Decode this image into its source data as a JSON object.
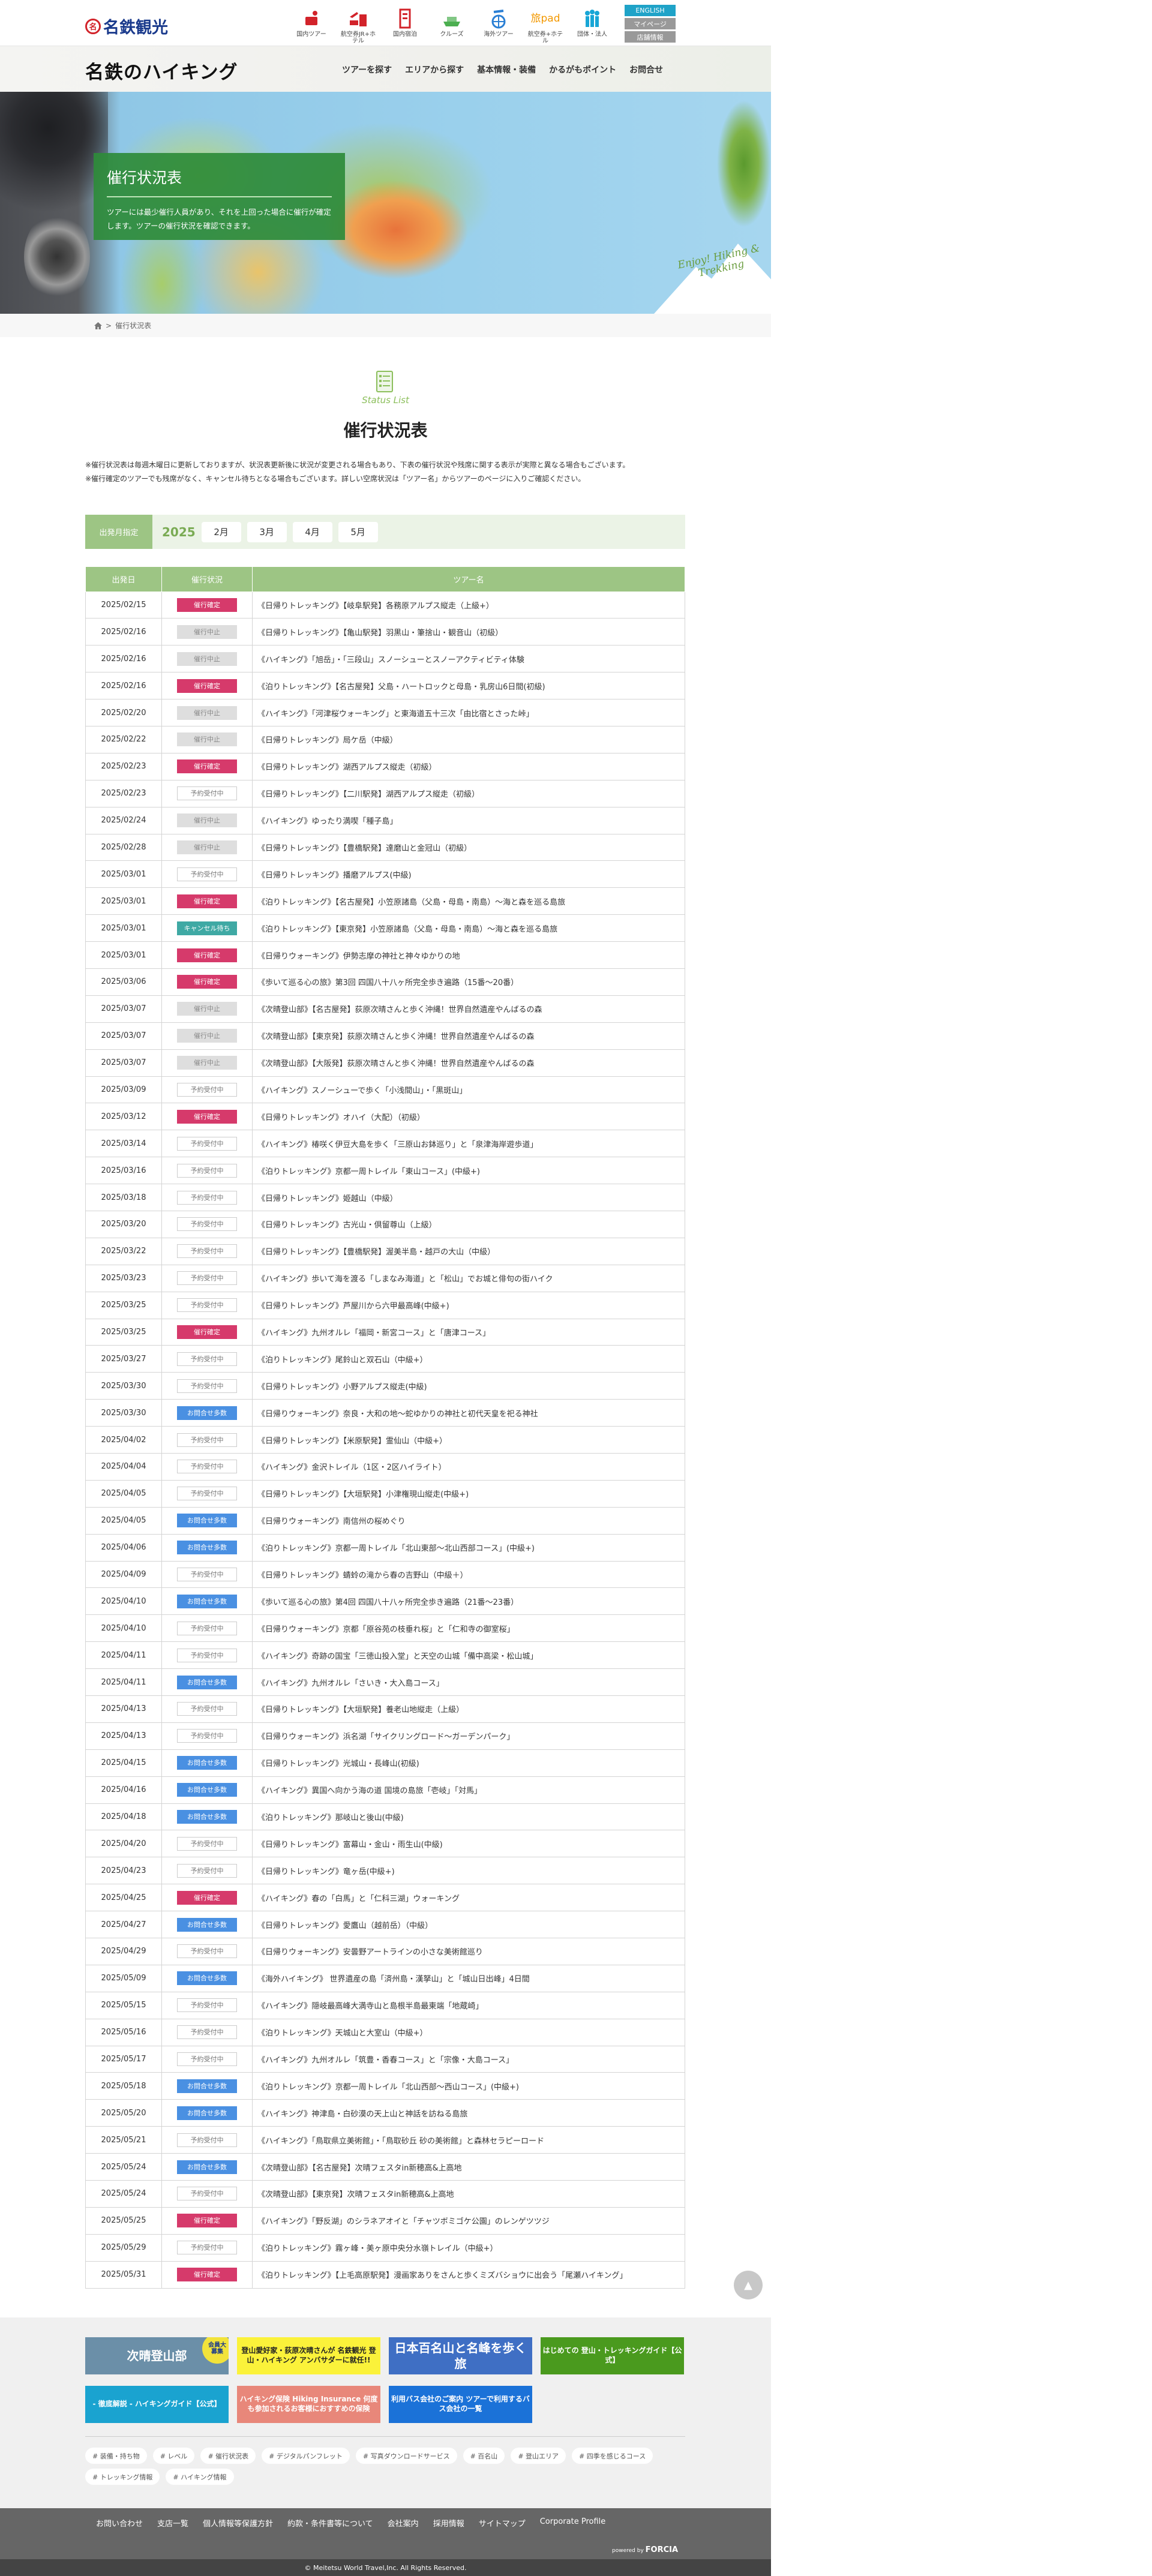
{
  "header": {
    "brand": "名鉄観光",
    "services": [
      {
        "label": "国内ツアー",
        "icon": "domestic-tour-icon",
        "color": "#d2232a"
      },
      {
        "label": "航空券JR+ホテル",
        "icon": "air-jr-hotel-icon",
        "color": "#d2232a"
      },
      {
        "label": "国内宿泊",
        "icon": "hotel-icon",
        "color": "#d2232a"
      },
      {
        "label": "クルーズ",
        "icon": "cruise-icon",
        "color": "#4caf50"
      },
      {
        "label": "海外ツアー",
        "icon": "overseas-tour-icon",
        "color": "#2a7fd4"
      },
      {
        "label": "航空券+ホテル",
        "icon": "tabipad-icon",
        "logo": "旅pad",
        "color": "#f39800"
      },
      {
        "label": "団体・法人",
        "icon": "group-icon",
        "color": "#18a6d6"
      }
    ],
    "buttons": [
      {
        "label": "ENGLISH",
        "color": "#1fa3c8"
      },
      {
        "label": "マイページ",
        "color": "#999999"
      },
      {
        "label": "店舗情報",
        "color": "#999999"
      }
    ]
  },
  "nav": {
    "logo": "名鉄のハイキング",
    "items": [
      "ツアーを探す",
      "エリアから探す",
      "基本情報・装備",
      "かるがもポイント",
      "お問合せ"
    ]
  },
  "hero": {
    "title": "催行状況表",
    "description": "ツアーには最少催行人員があり、それを上回った場合に催行が確定します。ツアーの催行状況を確認できます。",
    "tagline": "Enjoy! Hiking & Trekking"
  },
  "breadcrumb": {
    "home_icon": "home-icon",
    "current": "催行状況表"
  },
  "section": {
    "subtitle": "Status List",
    "title": "催行状況表",
    "notes": [
      "※催行状況表は毎週木曜日に更新しておりますが、状況表更新後に状況が変更される場合もあり、下表の催行状況や残席に関する表示が実際と異なる場合もございます。",
      "※催行確定のツアーでも残席がなく、キャンセル待ちとなる場合もございます。詳しい空席状況は「ツアー名」からツアーのページに入りご確認ください。"
    ]
  },
  "filter": {
    "label": "出発月指定",
    "year": "2025",
    "months": [
      "2月",
      "3月",
      "4月",
      "5月"
    ]
  },
  "table": {
    "headers": [
      "出発日",
      "催行状況",
      "ツアー名"
    ],
    "status_labels": {
      "confirmed": "催行確定",
      "cancelled": "催行中止",
      "accepting": "予約受付中",
      "waitlist": "キャンセル待ち",
      "inquiries": "お問合せ多数"
    },
    "status_colors": {
      "confirmed": "#d63a6b",
      "cancelled": "#dedede",
      "accepting": "#ffffff",
      "waitlist": "#3fa9a4",
      "inquiries": "#4a90e2"
    },
    "rows": [
      [
        "2025/02/15",
        "confirmed",
        "《日帰りトレッキング》【岐阜駅発】各務原アルプス縦走（上級+）"
      ],
      [
        "2025/02/16",
        "cancelled",
        "《日帰りトレッキング》【亀山駅発】羽黒山・筆捨山・観音山（初級）"
      ],
      [
        "2025/02/16",
        "cancelled",
        "《ハイキング》「旭岳」・「三段山」スノーシューとスノーアクティビティ体験"
      ],
      [
        "2025/02/16",
        "confirmed",
        "《泊りトレッキング》【名古屋発】父島・ハートロックと母島・乳房山6日間(初級)"
      ],
      [
        "2025/02/20",
        "cancelled",
        "《ハイキング》「河津桜ウォーキング」と東海道五十三次「由比宿とさった峠」"
      ],
      [
        "2025/02/22",
        "cancelled",
        "《日帰りトレッキング》局ケ岳（中級）"
      ],
      [
        "2025/02/23",
        "confirmed",
        "《日帰りトレッキング》湖西アルプス縦走（初級）"
      ],
      [
        "2025/02/23",
        "accepting",
        "《日帰りトレッキング》【二川駅発】湖西アルプス縦走（初級）"
      ],
      [
        "2025/02/24",
        "cancelled",
        "《ハイキング》ゆったり満喫「種子島」"
      ],
      [
        "2025/02/28",
        "cancelled",
        "《日帰りトレッキング》【豊橋駅発】達磨山と金冠山（初級）"
      ],
      [
        "2025/03/01",
        "accepting",
        "《日帰りトレッキング》播磨アルプス(中級)"
      ],
      [
        "2025/03/01",
        "confirmed",
        "《泊りトレッキング》【名古屋発】小笠原諸島（父島・母島・南島）～海と森を巡る島旅"
      ],
      [
        "2025/03/01",
        "waitlist",
        "《泊りトレッキング》【東京発】小笠原諸島（父島・母島・南島）～海と森を巡る島旅"
      ],
      [
        "2025/03/01",
        "confirmed",
        "《日帰りウォーキング》伊勢志摩の神社と神々ゆかりの地"
      ],
      [
        "2025/03/06",
        "confirmed",
        "《歩いて巡る心の旅》第3回 四国八十八ヶ所完全歩き遍路（15番～20番）"
      ],
      [
        "2025/03/07",
        "cancelled",
        "《次晴登山部》【名古屋発】荻原次晴さんと歩く沖縄！世界自然遺産やんばるの森"
      ],
      [
        "2025/03/07",
        "cancelled",
        "《次晴登山部》【東京発】荻原次晴さんと歩く沖縄！世界自然遺産やんばるの森"
      ],
      [
        "2025/03/07",
        "cancelled",
        "《次晴登山部》【大阪発】荻原次晴さんと歩く沖縄！世界自然遺産やんばるの森"
      ],
      [
        "2025/03/09",
        "accepting",
        "《ハイキング》スノーシューで歩く「小浅間山」・「黒斑山」"
      ],
      [
        "2025/03/12",
        "confirmed",
        "《日帰りトレッキング》オハイ（大配）（初級）"
      ],
      [
        "2025/03/14",
        "accepting",
        "《ハイキング》椿咲く伊豆大島を歩く「三原山お鉢巡り」と「泉津海岸遊歩道」"
      ],
      [
        "2025/03/16",
        "accepting",
        "《泊りトレッキング》京都一周トレイル「東山コース」(中級+)"
      ],
      [
        "2025/03/18",
        "accepting",
        "《日帰りトレッキング》姫越山（中級）"
      ],
      [
        "2025/03/20",
        "accepting",
        "《日帰りトレッキング》古光山・倶留尊山（上級）"
      ],
      [
        "2025/03/22",
        "accepting",
        "《日帰りトレッキング》【豊橋駅発】渥美半島・越戸の大山（中級）"
      ],
      [
        "2025/03/23",
        "accepting",
        "《ハイキング》歩いて海を渡る「しまなみ海道」と「松山」でお城と俳句の街ハイク"
      ],
      [
        "2025/03/25",
        "accepting",
        "《日帰りトレッキング》芦屋川から六甲最高峰(中級+)"
      ],
      [
        "2025/03/25",
        "confirmed",
        "《ハイキング》九州オルレ「福岡・新宮コース」と「唐津コース」"
      ],
      [
        "2025/03/27",
        "accepting",
        "《泊りトレッキング》尾鈴山と双石山（中級+）"
      ],
      [
        "2025/03/30",
        "accepting",
        "《日帰りトレッキング》小野アルプス縦走(中級)"
      ],
      [
        "2025/03/30",
        "inquiries",
        "《日帰りウォーキング》奈良・大和の地～蛇ゆかりの神社と初代天皇を祀る神社"
      ],
      [
        "2025/04/02",
        "accepting",
        "《日帰りトレッキング》【米原駅発】霊仙山（中級+）"
      ],
      [
        "2025/04/04",
        "accepting",
        "《ハイキング》金沢トレイル（1区・2区ハイライト）"
      ],
      [
        "2025/04/05",
        "accepting",
        "《日帰りトレッキング》【大垣駅発】小津権現山縦走(中級+)"
      ],
      [
        "2025/04/05",
        "inquiries",
        "《日帰りウォーキング》南信州の桜めぐり"
      ],
      [
        "2025/04/06",
        "inquiries",
        "《泊りトレッキング》京都一周トレイル「北山東部～北山西部コース」(中級+)"
      ],
      [
        "2025/04/09",
        "accepting",
        "《日帰りトレッキング》蜻蛉の滝から春の吉野山（中級＋）"
      ],
      [
        "2025/04/10",
        "inquiries",
        "《歩いて巡る心の旅》第4回 四国八十八ヶ所完全歩き遍路（21番～23番）"
      ],
      [
        "2025/04/10",
        "accepting",
        "《日帰りウォーキング》京都「原谷苑の枝垂れ桜」と「仁和寺の御室桜」"
      ],
      [
        "2025/04/11",
        "accepting",
        "《ハイキング》奇跡の国宝「三徳山投入堂」と天空の山城「備中高梁・松山城」"
      ],
      [
        "2025/04/11",
        "inquiries",
        "《ハイキング》九州オルレ「さいき・大入島コース」"
      ],
      [
        "2025/04/13",
        "accepting",
        "《日帰りトレッキング》【大垣駅発】養老山地縦走（上級）"
      ],
      [
        "2025/04/13",
        "accepting",
        "《日帰りウォーキング》浜名湖「サイクリングロード～ガーデンパーク」"
      ],
      [
        "2025/04/15",
        "inquiries",
        "《日帰りトレッキング》光城山・長峰山(初級)"
      ],
      [
        "2025/04/16",
        "inquiries",
        "《ハイキング》異国へ向かう海の道 国境の島旅「壱岐」「対馬」"
      ],
      [
        "2025/04/18",
        "inquiries",
        "《泊りトレッキング》那岐山と後山(中級)"
      ],
      [
        "2025/04/20",
        "accepting",
        "《日帰りトレッキング》富幕山・金山・雨生山(中級)"
      ],
      [
        "2025/04/23",
        "accepting",
        "《日帰りトレッキング》竜ヶ岳(中級+)"
      ],
      [
        "2025/04/25",
        "confirmed",
        "《ハイキング》春の「白馬」と「仁科三湖」ウォーキング"
      ],
      [
        "2025/04/27",
        "inquiries",
        "《日帰りトレッキング》愛鷹山（越前岳）（中級）"
      ],
      [
        "2025/04/29",
        "accepting",
        "《日帰りウォーキング》安曇野アートラインの小さな美術館巡り"
      ],
      [
        "2025/05/09",
        "inquiries",
        "《海外ハイキング》 世界遺産の島「済州島・漢拏山」と「城山日出峰」4日間"
      ],
      [
        "2025/05/15",
        "accepting",
        "《ハイキング》隠岐最高峰大満寺山と島根半島最東端「地蔵崎」"
      ],
      [
        "2025/05/16",
        "accepting",
        "《泊りトレッキング》天城山と大室山（中級+）"
      ],
      [
        "2025/05/17",
        "accepting",
        "《ハイキング》九州オルレ「筑豊・香春コース」と「宗像・大島コース」"
      ],
      [
        "2025/05/18",
        "inquiries",
        "《泊りトレッキング》京都一周トレイル「北山西部～西山コース」(中級+)"
      ],
      [
        "2025/05/20",
        "inquiries",
        "《ハイキング》神津島・白砂漠の天上山と神話を訪ねる島旅"
      ],
      [
        "2025/05/21",
        "accepting",
        "《ハイキング》「鳥取県立美術館」・「鳥取砂丘 砂の美術館」と森林セラピーロード"
      ],
      [
        "2025/05/24",
        "inquiries",
        "《次晴登山部》【名古屋発】次晴フェスタin新穂高&上高地"
      ],
      [
        "2025/05/24",
        "accepting",
        "《次晴登山部》【東京発】次晴フェスタin新穂高&上高地"
      ],
      [
        "2025/05/25",
        "confirmed",
        "《ハイキング》「野反湖」のシラネアオイと「チャツボミゴケ公園」のレンゲツツジ"
      ],
      [
        "2025/05/29",
        "accepting",
        "《泊りトレッキング》霧ヶ峰・美ヶ原中央分水嶺トレイル（中級+）"
      ],
      [
        "2025/05/31",
        "confirmed",
        "《泊りトレッキング》【上毛高原駅発】漫画家ありをさんと歩くミズバショウに出会う「尾瀬ハイキング」"
      ]
    ]
  },
  "banners": [
    {
      "text": "次晴登山部",
      "badge": "会員大募集",
      "bg": "#6b8fa8",
      "fg": "#ffffff"
    },
    {
      "text": "登山愛好家・荻原次晴さんが 名鉄観光 登山・ハイキング アンバサダーに就任!!",
      "bg": "#fbf23a",
      "fg": "#222222"
    },
    {
      "text": "日本百名山と名峰を歩く旅",
      "bg": "#3f6fc4",
      "fg": "#ffffff"
    },
    {
      "text": "はじめての 登山・トレッキングガイド【公式】",
      "bg": "#4a9a1e",
      "fg": "#ffffff"
    },
    {
      "text": "- 徹底解説 - ハイキングガイド【公式】",
      "bg": "#1aa3d0",
      "fg": "#ffffff"
    },
    {
      "text": "ハイキング保険 Hiking Insurance 何度も参加されるお客様におすすめの保険",
      "bg": "#e8877a",
      "fg": "#ffffff"
    },
    {
      "text": "利用バス会社のご案内 ツアーで利用するバス会社の一覧",
      "bg": "#1b72d8",
      "fg": "#ffffff"
    }
  ],
  "tags": [
    "# 装備・持ち物",
    "# レベル",
    "# 催行状況表",
    "# デジタルパンフレット",
    "# 写真ダウンロードサービス",
    "# 百名山",
    "# 登山エリア",
    "# 四季を感じるコース",
    "# トレッキング情報",
    "# ハイキング情報"
  ],
  "footer": {
    "links": [
      "お問い合わせ",
      "支店一覧",
      "個人情報等保護方針",
      "約款・条件書等について",
      "会社案内",
      "採用情報",
      "サイトマップ",
      "Corporate Profile"
    ],
    "powered_by": "powered by",
    "powered_brand": "FORCIA",
    "copyright": "© Meitetsu World Travel,Inc. All Rights Reserved."
  },
  "back_to_top_icon": "arrow-up-icon"
}
